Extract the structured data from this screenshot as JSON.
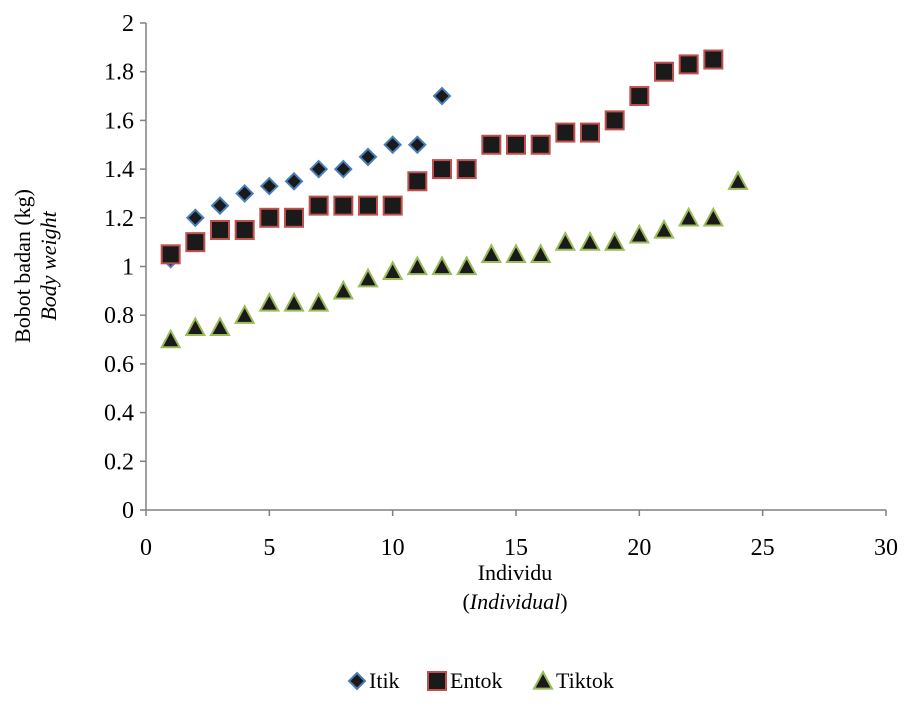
{
  "chart_data": {
    "type": "scatter",
    "title": "",
    "xlim": [
      0,
      30
    ],
    "ylim": [
      0,
      2
    ],
    "x_ticks": [
      0,
      5,
      10,
      15,
      20,
      25,
      30
    ],
    "y_ticks": [
      0,
      0.2,
      0.4,
      0.6,
      0.8,
      1,
      1.2,
      1.4,
      1.6,
      1.8,
      2
    ],
    "x_tick_labels": [
      "0",
      "5",
      "10",
      "15",
      "20",
      "25",
      "30"
    ],
    "y_tick_labels": [
      "0",
      "0.2",
      "0.4",
      "0.6",
      "0.8",
      "1",
      "1.2",
      "1.4",
      "1.6",
      "1.8",
      "2"
    ],
    "xlabel": "Individu",
    "xlabel_sub": "Individual",
    "ylabel": "Bobot badan (kg)",
    "ylabel_sub": "Body weight",
    "grid": false,
    "legend_position": "bottom-center",
    "series": [
      {
        "name": "Itik",
        "marker": "diamond",
        "fill": "#1a1a1a",
        "stroke": "#4a7ebb",
        "x": [
          1,
          2,
          3,
          4,
          5,
          6,
          7,
          8,
          9,
          10,
          11,
          12
        ],
        "y": [
          1.03,
          1.2,
          1.25,
          1.3,
          1.33,
          1.35,
          1.4,
          1.4,
          1.45,
          1.5,
          1.5,
          1.7
        ]
      },
      {
        "name": "Entok",
        "marker": "square",
        "fill": "#1a1a1a",
        "stroke": "#c0504d",
        "x": [
          1,
          2,
          3,
          4,
          5,
          6,
          7,
          8,
          9,
          10,
          11,
          12,
          13,
          14,
          15,
          16,
          17,
          18,
          19,
          20,
          21,
          22,
          23
        ],
        "y": [
          1.05,
          1.1,
          1.15,
          1.15,
          1.2,
          1.2,
          1.25,
          1.25,
          1.25,
          1.25,
          1.35,
          1.4,
          1.4,
          1.5,
          1.5,
          1.5,
          1.55,
          1.55,
          1.6,
          1.7,
          1.8,
          1.83,
          1.85
        ]
      },
      {
        "name": "Tiktok",
        "marker": "triangle",
        "fill": "#1a1a1a",
        "stroke": "#9bbb59",
        "x": [
          1,
          2,
          3,
          4,
          5,
          6,
          7,
          8,
          9,
          10,
          11,
          12,
          13,
          14,
          15,
          16,
          17,
          18,
          19,
          20,
          21,
          22,
          23,
          24
        ],
        "y": [
          0.7,
          0.75,
          0.75,
          0.8,
          0.85,
          0.85,
          0.85,
          0.9,
          0.95,
          0.98,
          1.0,
          1.0,
          1.0,
          1.05,
          1.05,
          1.05,
          1.1,
          1.1,
          1.1,
          1.13,
          1.15,
          1.2,
          1.2,
          1.35
        ]
      }
    ]
  }
}
